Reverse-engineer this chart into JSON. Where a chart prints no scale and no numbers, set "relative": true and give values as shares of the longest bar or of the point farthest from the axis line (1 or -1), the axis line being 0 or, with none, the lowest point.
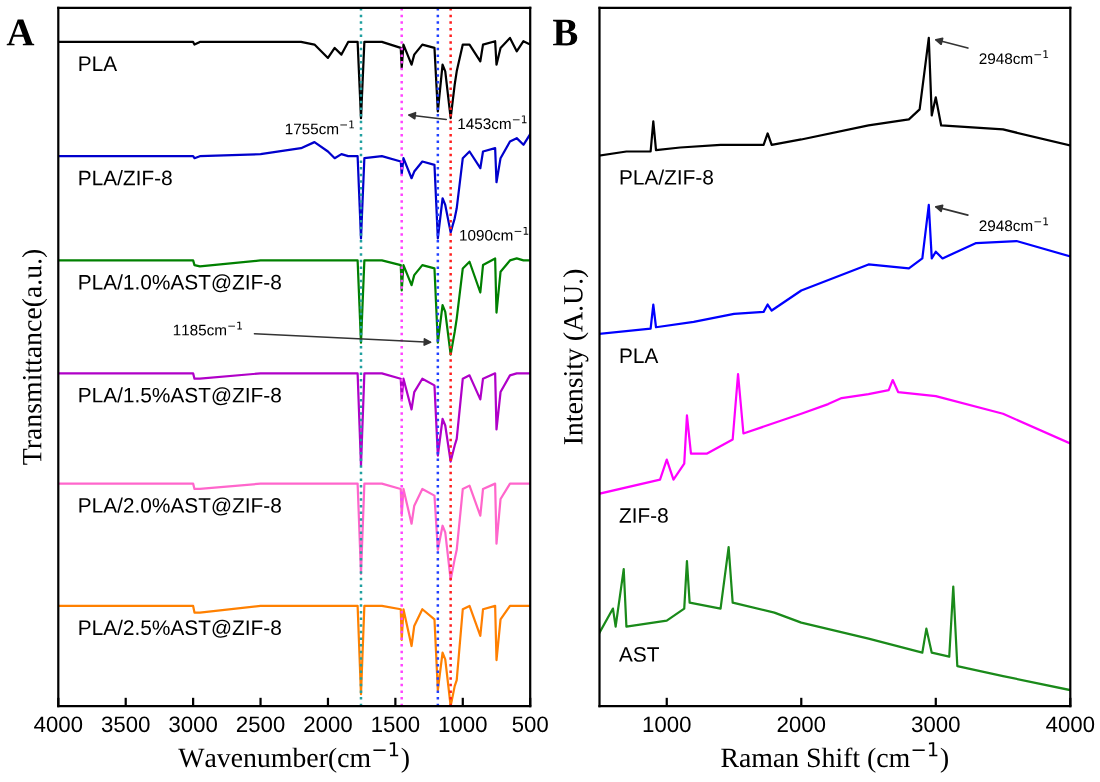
{
  "chart_data": [
    {
      "type": "line",
      "title": "A",
      "xlabel": "Wavenumber(cm$^{−1}$)",
      "ylabel": "Transmittance(a.u.)",
      "relative": true,
      "xlim": [
        4000,
        500
      ],
      "xticks": [
        4000,
        3500,
        3000,
        2500,
        2000,
        1500,
        1000,
        500
      ],
      "x": [
        4000,
        3500,
        3000,
        2990,
        2950,
        2500,
        2200,
        2100,
        2000,
        1950,
        1900,
        1850,
        1780,
        1755,
        1730,
        1600,
        1460,
        1453,
        1440,
        1380,
        1360,
        1300,
        1210,
        1185,
        1150,
        1130,
        1090,
        1060,
        1045,
        1000,
        950,
        870,
        850,
        760,
        750,
        720,
        650,
        600,
        550,
        500
      ],
      "series": [
        {
          "name": "PLA",
          "color": "#000000",
          "values": [
            0.994,
            0.994,
            0.994,
            0.99,
            0.994,
            0.994,
            0.994,
            0.99,
            0.97,
            0.985,
            0.975,
            0.994,
            0.994,
            0.88,
            0.994,
            0.994,
            0.985,
            0.955,
            0.99,
            0.96,
            0.975,
            0.99,
            0.985,
            0.89,
            0.96,
            0.95,
            0.88,
            0.93,
            0.95,
            0.99,
            0.99,
            0.965,
            0.99,
            0.995,
            0.96,
            0.985,
            1.0,
            0.98,
            0.995,
            0.99
          ]
        },
        {
          "name": "PLA/ZIF-8",
          "color": "#0000cc",
          "values": [
            0.823,
            0.823,
            0.823,
            0.82,
            0.823,
            0.826,
            0.835,
            0.844,
            0.83,
            0.82,
            0.826,
            0.823,
            0.823,
            0.7,
            0.82,
            0.823,
            0.815,
            0.796,
            0.82,
            0.79,
            0.8,
            0.815,
            0.81,
            0.7,
            0.76,
            0.75,
            0.709,
            0.73,
            0.745,
            0.82,
            0.83,
            0.805,
            0.83,
            0.835,
            0.784,
            0.82,
            0.845,
            0.85,
            0.84,
            0.856
          ]
        },
        {
          "name": "PLA/1.0%AST@ZIF-8",
          "color": "#008000",
          "values": [
            0.667,
            0.667,
            0.667,
            0.66,
            0.658,
            0.667,
            0.667,
            0.667,
            0.667,
            0.667,
            0.667,
            0.667,
            0.667,
            0.544,
            0.667,
            0.667,
            0.66,
            0.622,
            0.66,
            0.63,
            0.645,
            0.66,
            0.655,
            0.544,
            0.6,
            0.59,
            0.526,
            0.56,
            0.58,
            0.655,
            0.665,
            0.619,
            0.66,
            0.67,
            0.589,
            0.65,
            0.667,
            0.67,
            0.667,
            0.667
          ]
        },
        {
          "name": "PLA/1.5%AST@ZIF-8",
          "color": "#b000c8",
          "values": [
            0.498,
            0.498,
            0.498,
            0.49,
            0.49,
            0.498,
            0.498,
            0.498,
            0.498,
            0.498,
            0.498,
            0.498,
            0.498,
            0.36,
            0.498,
            0.498,
            0.49,
            0.459,
            0.49,
            0.444,
            0.47,
            0.49,
            0.48,
            0.375,
            0.43,
            0.42,
            0.366,
            0.39,
            0.4,
            0.49,
            0.495,
            0.459,
            0.49,
            0.498,
            0.414,
            0.47,
            0.495,
            0.498,
            0.498,
            0.498
          ]
        },
        {
          "name": "PLA/2.0%AST@ZIF-8",
          "color": "#ff66cc",
          "values": [
            0.333,
            0.333,
            0.333,
            0.325,
            0.325,
            0.333,
            0.333,
            0.333,
            0.333,
            0.333,
            0.333,
            0.333,
            0.333,
            0.198,
            0.333,
            0.333,
            0.325,
            0.285,
            0.325,
            0.273,
            0.3,
            0.325,
            0.315,
            0.234,
            0.27,
            0.26,
            0.189,
            0.22,
            0.234,
            0.325,
            0.33,
            0.285,
            0.325,
            0.333,
            0.243,
            0.31,
            0.333,
            0.333,
            0.333,
            0.333
          ]
        },
        {
          "name": "PLA/2.5%AST@ZIF-8",
          "color": "#ff8000",
          "values": [
            0.15,
            0.15,
            0.15,
            0.14,
            0.14,
            0.15,
            0.15,
            0.15,
            0.15,
            0.15,
            0.15,
            0.15,
            0.15,
            0.018,
            0.15,
            0.15,
            0.145,
            0.099,
            0.145,
            0.09,
            0.12,
            0.145,
            0.13,
            0.024,
            0.08,
            0.07,
            0.0,
            0.03,
            0.039,
            0.145,
            0.15,
            0.105,
            0.145,
            0.15,
            0.069,
            0.13,
            0.15,
            0.15,
            0.15,
            0.15
          ]
        }
      ],
      "ref_lines": [
        {
          "axis": "x",
          "value": 1755,
          "color": "#20a0a0",
          "line_style": "dotted"
        },
        {
          "axis": "x",
          "value": 1453,
          "color": "#ff44ff",
          "line_style": "dotted"
        },
        {
          "axis": "x",
          "value": 1185,
          "color": "#2040ff",
          "line_style": "dotted"
        },
        {
          "axis": "x",
          "value": 1090,
          "color": "#ff2020",
          "line_style": "dotted"
        }
      ],
      "annotations": [
        {
          "text": "1755cm$^{−1}$",
          "x": 1755,
          "y": 0.87
        },
        {
          "text": "1453cm$^{−1}$",
          "x": 1453,
          "y": 0.886
        },
        {
          "text": "1090cm$^{−1}$",
          "x": 1090,
          "y": 0.69
        },
        {
          "text": "1185cm$^{−1}$",
          "x": 1185,
          "y": 0.544
        }
      ],
      "grid": false,
      "legend": false
    },
    {
      "type": "line",
      "title": "B",
      "xlabel": "Raman Shift (cm$^{−1}$)",
      "ylabel": "Intensity (A.U.)",
      "relative": true,
      "xlim": [
        500,
        4000
      ],
      "xticks": [
        1000,
        2000,
        3000,
        4000
      ],
      "series": [
        {
          "name": "PLA/ZIF-8",
          "color": "#000000",
          "x": [
            500,
            700,
            880,
            900,
            920,
            1100,
            1400,
            1720,
            1750,
            1780,
            2000,
            2500,
            2800,
            2880,
            2948,
            2970,
            3000,
            3040,
            3500,
            4000
          ],
          "values": [
            0.824,
            0.83,
            0.83,
            0.875,
            0.832,
            0.836,
            0.84,
            0.84,
            0.857,
            0.84,
            0.848,
            0.869,
            0.878,
            0.893,
            1.0,
            0.884,
            0.911,
            0.869,
            0.863,
            0.839
          ]
        },
        {
          "name": "PLA",
          "color": "#0000ff",
          "x": [
            500,
            880,
            900,
            920,
            1200,
            1500,
            1720,
            1750,
            1780,
            2000,
            2500,
            2800,
            2900,
            2948,
            2970,
            3000,
            3050,
            3300,
            3600,
            4000
          ],
          "values": [
            0.557,
            0.565,
            0.601,
            0.567,
            0.575,
            0.587,
            0.59,
            0.601,
            0.592,
            0.622,
            0.661,
            0.655,
            0.67,
            0.75,
            0.67,
            0.68,
            0.67,
            0.693,
            0.696,
            0.673
          ]
        },
        {
          "name": "ZIF-8",
          "color": "#ff00ff",
          "x": [
            500,
            950,
            1000,
            1050,
            1130,
            1150,
            1180,
            1300,
            1490,
            1530,
            1570,
            2000,
            2200,
            2300,
            2500,
            2650,
            2680,
            2720,
            3000,
            3500,
            4000
          ],
          "values": [
            0.318,
            0.339,
            0.369,
            0.339,
            0.363,
            0.435,
            0.378,
            0.378,
            0.399,
            0.497,
            0.408,
            0.4375,
            0.452,
            0.461,
            0.467,
            0.473,
            0.488,
            0.47,
            0.464,
            0.4375,
            0.393
          ]
        },
        {
          "name": "AST",
          "color": "#1a8a1a",
          "x": [
            500,
            600,
            620,
            680,
            700,
            900,
            1000,
            1130,
            1150,
            1170,
            1400,
            1460,
            1490,
            1800,
            2000,
            2500,
            2900,
            2930,
            2970,
            3100,
            3130,
            3160,
            3500,
            4000
          ],
          "values": [
            0.11,
            0.146,
            0.119,
            0.205,
            0.119,
            0.125,
            0.128,
            0.146,
            0.217,
            0.155,
            0.146,
            0.238,
            0.155,
            0.14,
            0.125,
            0.101,
            0.08,
            0.116,
            0.08,
            0.074,
            0.179,
            0.06,
            0.045,
            0.024
          ]
        }
      ],
      "annotations": [
        {
          "text": "2948cm$^{−1}$",
          "x": 2948,
          "y": 1.0
        },
        {
          "text": "2948cm$^{−1}$",
          "x": 2948,
          "y": 0.75
        }
      ],
      "grid": false,
      "legend": false
    }
  ]
}
